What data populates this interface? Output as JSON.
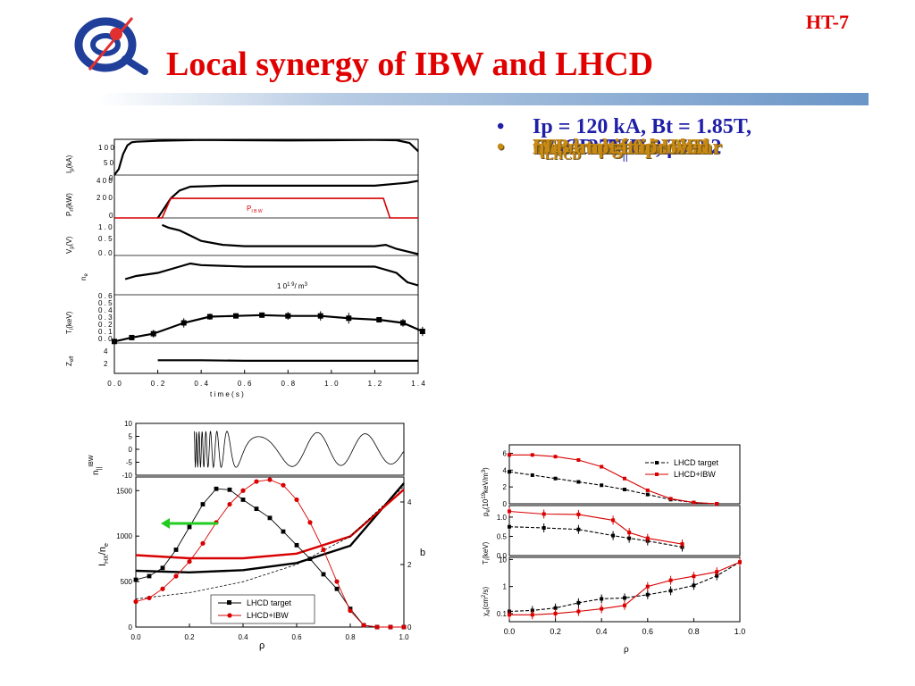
{
  "header": {
    "title": "Local synergy of IBW and LHCD",
    "tag": "HT-7"
  },
  "colors": {
    "title": "#e00000",
    "bullet_blue": "#1f1fa8",
    "bullet_gold": "#c88a12",
    "lhcd": "#000000",
    "ibw": "#d80000"
  },
  "bullets": [
    {
      "prefix": "Ip = 120 kA, Bt = 1.85T,",
      "style": "blue"
    },
    {
      "prefix": "LHCD: N",
      "sub": "||",
      "suffix": " = 2.35",
      "style": "blue"
    },
    {
      "prefix": "IBW: 27MHz, ",
      "greek": "ρ",
      "suffix": " ~0.2",
      "style": "blue"
    },
    {
      "prefix": "Outer-shifted HXR",
      "style": "gold"
    },
    {
      "prefix": "Weak negative shear",
      "style": "gold"
    },
    {
      "prefix": "ITB at ",
      "greek": "ρ",
      "suffix": " = 0.5~0.6",
      "style": "gold"
    },
    {
      "greek": "η",
      "sub": "LHCD",
      "suffix": " not improved",
      "style": "gold"
    }
  ],
  "chart_data": [
    {
      "type": "line",
      "xlabel": "time (s)",
      "x_ticks": [
        "0.0",
        "0.2",
        "0.4",
        "0.6",
        "0.8",
        "1.0",
        "1.2",
        "1.4"
      ],
      "xlim": [
        0,
        1.4
      ],
      "panels": [
        {
          "ylabel": "I_p (kA)",
          "y_ticks": [
            "100",
            "50",
            "0"
          ],
          "ylim": [
            0,
            120
          ],
          "series": [
            {
              "x": [
                0.0,
                0.02,
                0.04,
                0.06,
                0.08,
                0.1,
                0.2,
                0.4,
                0.6,
                0.8,
                1.0,
                1.2,
                1.3,
                1.36,
                1.4
              ],
              "values": [
                0,
                20,
                70,
                100,
                110,
                112,
                115,
                118,
                117,
                116,
                117,
                118,
                117,
                108,
                80
              ]
            }
          ]
        },
        {
          "ylabel": "P_rf (kW)",
          "y_ticks": [
            "400",
            "200",
            "0"
          ],
          "ylim": [
            0,
            420
          ],
          "series": [
            {
              "x": [
                0.2,
                0.23,
                0.26,
                0.3,
                0.35,
                0.5,
                0.8,
                1.0,
                1.2,
                1.3,
                1.35,
                1.4
              ],
              "values": [
                0,
                100,
                200,
                280,
                320,
                330,
                330,
                330,
                330,
                350,
                360,
                380
              ]
            },
            {
              "name": "P_IBW",
              "x": [
                0.0,
                0.22,
                0.26,
                1.24,
                1.27,
                1.4
              ],
              "values": [
                0,
                0,
                200,
                200,
                0,
                0
              ]
            }
          ]
        },
        {
          "ylabel": "V_p (V)",
          "y_ticks": [
            "1.0",
            "0.5",
            "0.0"
          ],
          "ylim": [
            0,
            1.2
          ],
          "series": [
            {
              "x": [
                0.22,
                0.25,
                0.3,
                0.35,
                0.4,
                0.5,
                0.6,
                0.8,
                1.0,
                1.2,
                1.25,
                1.3,
                1.35,
                1.4
              ],
              "values": [
                1.0,
                0.9,
                0.8,
                0.6,
                0.4,
                0.25,
                0.2,
                0.2,
                0.2,
                0.2,
                0.25,
                0.1,
                0.0,
                -0.1
              ]
            }
          ]
        },
        {
          "ylabel": "n_e",
          "y_ticks": [],
          "annotation": "10^19/m^3",
          "series": [
            {
              "x": [
                0.05,
                0.1,
                0.2,
                0.3,
                0.35,
                0.4,
                0.6,
                0.8,
                1.0,
                1.2,
                1.3,
                1.35,
                1.4
              ],
              "values": [
                0.5,
                0.6,
                0.7,
                0.9,
                1.0,
                0.95,
                0.9,
                0.9,
                0.9,
                0.9,
                0.7,
                0.4,
                0.3
              ]
            }
          ]
        },
        {
          "ylabel": "T_i (keV)",
          "y_ticks": [
            "0.6",
            "0.5",
            "0.4",
            "0.3",
            "0.2",
            "0.1",
            "0.0"
          ],
          "ylim": [
            0,
            0.6
          ],
          "series": [
            {
              "x": [
                0.0,
                0.08,
                0.18,
                0.32,
                0.44,
                0.56,
                0.68,
                0.8,
                0.95,
                1.08,
                1.22,
                1.33,
                1.42
              ],
              "values": [
                0.02,
                0.07,
                0.12,
                0.26,
                0.34,
                0.35,
                0.36,
                0.35,
                0.35,
                0.32,
                0.3,
                0.26,
                0.15
              ],
              "errors": [
                0.02,
                0.03,
                0.05,
                0.06,
                0.04,
                0.03,
                0.02,
                0.05,
                0.06,
                0.07,
                0.03,
                0.05,
                0.06
              ]
            }
          ]
        },
        {
          "ylabel": "Z_eff",
          "y_ticks": [
            "4",
            "2"
          ],
          "ylim": [
            0,
            5
          ],
          "series": [
            {
              "x": [
                0.2,
                0.4,
                0.6,
                0.8,
                1.0,
                1.2,
                1.4
              ],
              "values": [
                2.3,
                2.3,
                2.2,
                2.2,
                2.2,
                2.2,
                2.2
              ]
            }
          ]
        }
      ]
    },
    {
      "type": "line",
      "xlabel": "ρ",
      "x_ticks": [
        "0.0",
        "0.2",
        "0.4",
        "0.6",
        "0.8",
        "1.0"
      ],
      "xlim": [
        0,
        1
      ],
      "top_panel": {
        "ylabel": "n_||^IBW",
        "y_ticks": [
          "10",
          "5",
          "0",
          "-5",
          "-10"
        ],
        "ylim": [
          -10,
          10
        ]
      },
      "main_panel": {
        "ylabel": "I_HX/n_e",
        "y_ticks": [
          "1500",
          "1000",
          "500",
          "0"
        ],
        "ylim": [
          0,
          1650
        ],
        "y2label": "b",
        "y2_ticks": [
          "4",
          "2",
          "0"
        ],
        "y2lim": [
          0,
          4.8
        ],
        "legend": "bottom-left",
        "series": [
          {
            "name": "LHCD target",
            "x": [
              0.0,
              0.05,
              0.1,
              0.15,
              0.2,
              0.25,
              0.3,
              0.35,
              0.4,
              0.45,
              0.5,
              0.55,
              0.6,
              0.65,
              0.7,
              0.75,
              0.8,
              0.85,
              0.9,
              0.95,
              1.0
            ],
            "values": [
              520,
              560,
              650,
              850,
              1100,
              1350,
              1520,
              1510,
              1400,
              1300,
              1200,
              1050,
              900,
              750,
              580,
              420,
              200,
              20,
              0,
              0,
              0
            ]
          },
          {
            "name": "LHCD+IBW",
            "x": [
              0.0,
              0.05,
              0.1,
              0.15,
              0.2,
              0.25,
              0.3,
              0.35,
              0.4,
              0.45,
              0.5,
              0.55,
              0.6,
              0.65,
              0.7,
              0.75,
              0.8,
              0.85,
              0.9,
              0.95,
              1.0
            ],
            "values": [
              280,
              320,
              420,
              560,
              720,
              920,
              1150,
              1350,
              1500,
              1600,
              1620,
              1560,
              1400,
              1150,
              850,
              500,
              180,
              20,
              0,
              0,
              0
            ]
          }
        ]
      }
    },
    {
      "type": "line",
      "xlabel": "ρ",
      "x_ticks": [
        "0.0",
        "0.2",
        "0.4",
        "0.6",
        "0.8",
        "1.0"
      ],
      "xlim": [
        0,
        1
      ],
      "legend": "top-right",
      "panels": [
        {
          "ylabel": "p_e(10^19keV/m^3)",
          "y_ticks": [
            "6",
            "4",
            "2",
            "0"
          ],
          "ylim": [
            0,
            7
          ],
          "series": [
            {
              "name": "LHCD target",
              "x": [
                0.0,
                0.1,
                0.2,
                0.3,
                0.4,
                0.5,
                0.6,
                0.7,
                0.8,
                0.9
              ],
              "values": [
                3.8,
                3.4,
                3.0,
                2.6,
                2.2,
                1.7,
                1.1,
                0.5,
                0.15,
                0.0
              ]
            },
            {
              "name": "LHCD+IBW",
              "x": [
                0.0,
                0.1,
                0.2,
                0.3,
                0.4,
                0.5,
                0.6,
                0.7,
                0.8,
                0.9
              ],
              "values": [
                5.8,
                5.8,
                5.6,
                5.2,
                4.4,
                3.0,
                1.6,
                0.6,
                0.15,
                0.0
              ]
            }
          ]
        },
        {
          "ylabel": "T_i(keV)",
          "y_ticks": [
            "1.0",
            "0.5",
            "0.0"
          ],
          "ylim": [
            0,
            1.3
          ],
          "series": [
            {
              "name": "LHCD target",
              "x": [
                0.0,
                0.15,
                0.3,
                0.45,
                0.52,
                0.6,
                0.75
              ],
              "values": [
                0.75,
                0.72,
                0.68,
                0.52,
                0.45,
                0.38,
                0.22
              ]
            },
            {
              "name": "LHCD+IBW",
              "x": [
                0.0,
                0.15,
                0.3,
                0.45,
                0.52,
                0.6,
                0.75
              ],
              "values": [
                1.15,
                1.08,
                1.07,
                0.92,
                0.6,
                0.45,
                0.3
              ]
            }
          ]
        },
        {
          "ylabel": "χ_e(cm^2/s)",
          "y_ticks": [
            "10",
            "1",
            "0.1"
          ],
          "ylim_log": [
            0.05,
            12
          ],
          "series": [
            {
              "name": "LHCD target",
              "x": [
                0.0,
                0.1,
                0.2,
                0.3,
                0.4,
                0.5,
                0.6,
                0.7,
                0.8,
                0.9,
                1.0
              ],
              "values": [
                0.12,
                0.13,
                0.16,
                0.25,
                0.35,
                0.38,
                0.5,
                0.7,
                1.1,
                2.5,
                8
              ]
            },
            {
              "name": "LHCD+IBW",
              "x": [
                0.0,
                0.1,
                0.2,
                0.3,
                0.4,
                0.5,
                0.6,
                0.7,
                0.8,
                0.9,
                1.0
              ],
              "values": [
                0.09,
                0.09,
                0.1,
                0.12,
                0.15,
                0.2,
                1.0,
                1.7,
                2.4,
                3.5,
                8
              ]
            }
          ]
        }
      ]
    }
  ],
  "figure_text": {
    "left": {
      "ip_ticks": [
        "1 0 0",
        "5 0",
        "0"
      ],
      "prf_ticks": [
        "4 0 0",
        "2 0 0",
        "0"
      ],
      "vp_ticks": [
        "1 . 0",
        "0 . 5",
        "0 . 0"
      ],
      "ti_ticks": [
        "0 . 6",
        "0 . 5",
        "0 . 4",
        "0 . 3",
        "0 . 2",
        "0 . 1",
        "0 . 0"
      ],
      "zeff_ticks": [
        "4",
        "2"
      ],
      "x_ticks": [
        "0 . 0",
        "0 . 2",
        "0 . 4",
        "0 . 6",
        "0 . 8",
        "1 . 0",
        "1 . 2",
        "1 . 4"
      ],
      "xlabel": "t i m e  ( s )",
      "ne_unit": "1 0",
      "ne_unit_exp": "1 9",
      "ne_unit_tail": "/ m",
      "ne_unit_exp2": "3",
      "pibw": "P",
      "pibw_sub": "I B W",
      "yl_ip": "I",
      "yl_ip_sub": "p",
      "yl_ip_tail": "(kA)",
      "yl_prf": "P",
      "yl_prf_sub": "rf",
      "yl_prf_tail": "(kW)",
      "yl_vp": "V",
      "yl_vp_sub": "p",
      "yl_vp_tail": "(V)",
      "yl_ne": "n",
      "yl_ne_sub": "e",
      "yl_ne_bar": "‾",
      "yl_ti": "T",
      "yl_ti_sub": "i",
      "yl_ti_tail": "(keV)",
      "yl_zeff": "Z",
      "yl_zeff_sub": "eff"
    },
    "bottom_left": {
      "n_ticks": [
        "10",
        "5",
        "0",
        "-5",
        "-10"
      ],
      "ihx_ticks": [
        "1500",
        "1000",
        "500",
        "0"
      ],
      "b_ticks": [
        "4",
        "2",
        "0"
      ],
      "x_ticks": [
        "0.0",
        "0.2",
        "0.4",
        "0.6",
        "0.8",
        "1.0"
      ],
      "xlabel": "ρ",
      "ylabel_n": "n",
      "ylabel_n_sub": "||",
      "ylabel_n_sup": "IBW",
      "ylabel_i": "I",
      "ylabel_i_sub": "HX",
      "ylabel_i_tail": "/n",
      "ylabel_i_sub2": "e",
      "ylabel_b": "b",
      "legend": [
        "LHCD target",
        "LHCD+IBW"
      ]
    },
    "bottom_right": {
      "pe_ticks": [
        "6",
        "4",
        "2",
        "0"
      ],
      "ti_ticks": [
        "1.0",
        "0.5",
        "0.0"
      ],
      "chi_ticks": [
        "10",
        "1",
        "0.1"
      ],
      "x_ticks": [
        "0.0",
        "0.2",
        "0.4",
        "0.6",
        "0.8",
        "1.0"
      ],
      "xlabel": "ρ",
      "ylabel_pe": "p",
      "ylabel_pe_sub": "e",
      "ylabel_pe_tail": "(10",
      "ylabel_pe_exp": "19",
      "ylabel_pe_tail2": "keV/m",
      "ylabel_pe_exp2": "3",
      "ylabel_pe_close": ")",
      "ylabel_ti": "T",
      "ylabel_ti_sub": "i",
      "ylabel_ti_tail": "(keV)",
      "ylabel_chi": "χ",
      "ylabel_chi_sub": "e",
      "ylabel_chi_tail": "(cm",
      "ylabel_chi_exp": "2",
      "ylabel_chi_close": "/s)",
      "legend": [
        "LHCD target",
        "LHCD+IBW"
      ]
    }
  }
}
